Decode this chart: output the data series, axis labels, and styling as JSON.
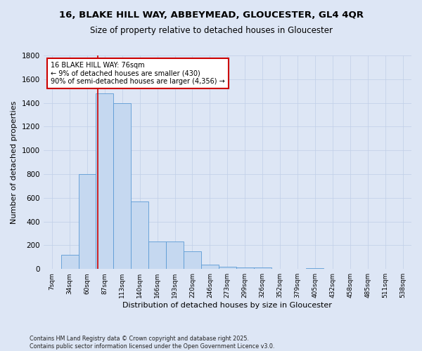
{
  "title_line1": "16, BLAKE HILL WAY, ABBEYMEAD, GLOUCESTER, GL4 4QR",
  "title_line2": "Size of property relative to detached houses in Gloucester",
  "xlabel": "Distribution of detached houses by size in Gloucester",
  "ylabel": "Number of detached properties",
  "footer": "Contains HM Land Registry data © Crown copyright and database right 2025.\nContains public sector information licensed under the Open Government Licence v3.0.",
  "categories": [
    "7sqm",
    "34sqm",
    "60sqm",
    "87sqm",
    "113sqm",
    "140sqm",
    "166sqm",
    "193sqm",
    "220sqm",
    "246sqm",
    "273sqm",
    "299sqm",
    "326sqm",
    "352sqm",
    "379sqm",
    "405sqm",
    "432sqm",
    "458sqm",
    "485sqm",
    "511sqm",
    "538sqm"
  ],
  "bar_heights": [
    0,
    120,
    800,
    1480,
    1400,
    570,
    230,
    230,
    150,
    35,
    20,
    15,
    15,
    0,
    0,
    5,
    0,
    0,
    0,
    0,
    0
  ],
  "bar_color": "#c5d8f0",
  "bar_edge_color": "#5b9bd5",
  "grid_color": "#c0cfe8",
  "background_color": "#dde6f5",
  "annotation_text": "16 BLAKE HILL WAY: 76sqm\n← 9% of detached houses are smaller (430)\n90% of semi-detached houses are larger (4,356) →",
  "annotation_box_color": "#ffffff",
  "annotation_box_edge": "#cc0000",
  "red_line_color": "#cc0000",
  "ylim": [
    0,
    1800
  ],
  "yticks": [
    0,
    200,
    400,
    600,
    800,
    1000,
    1200,
    1400,
    1600,
    1800
  ]
}
